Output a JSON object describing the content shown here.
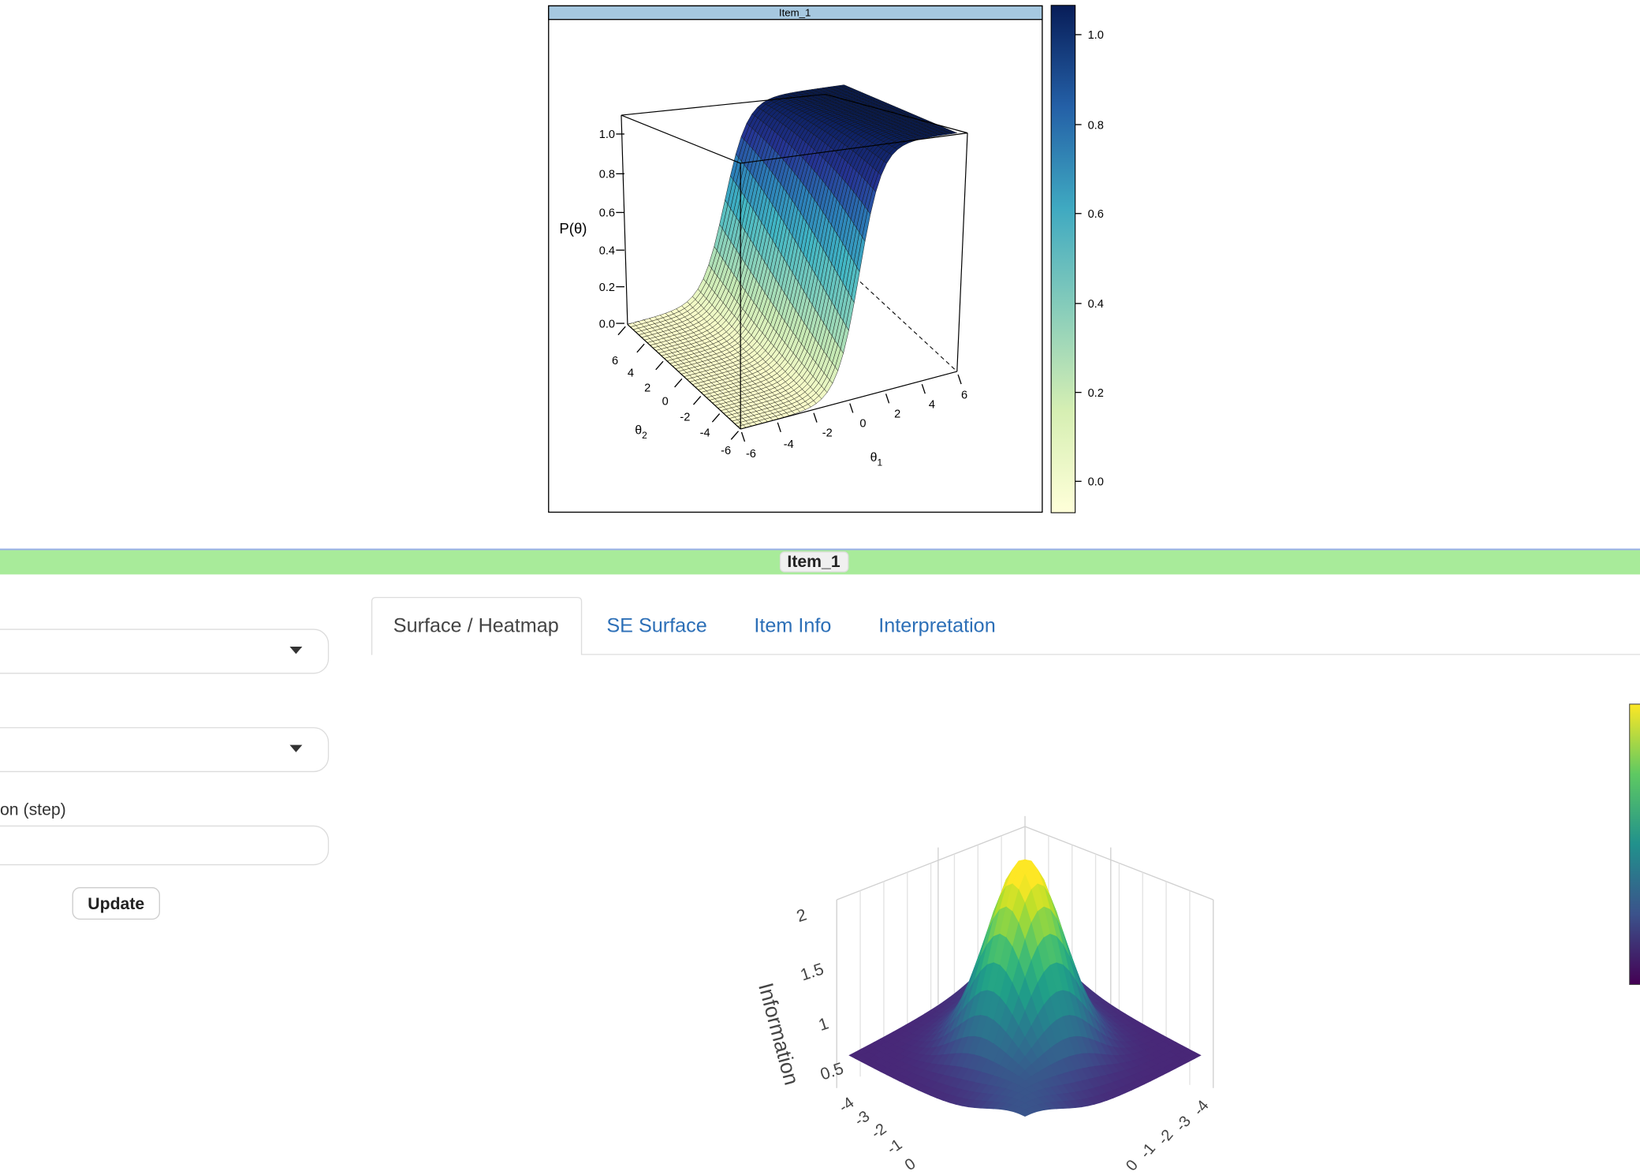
{
  "lattice_plot": {
    "strip": "Item_1",
    "z_label": "P(θ)",
    "z_ticks": [
      "0.0",
      "0.2",
      "0.4",
      "0.6",
      "0.8",
      "1.0"
    ],
    "theta1_label": {
      "symbol": "θ",
      "subscript": "1"
    },
    "theta1_ticks": [
      "-6",
      "-4",
      "-2",
      "0",
      "2",
      "4",
      "6"
    ],
    "theta2_label": {
      "symbol": "θ",
      "subscript": "2"
    },
    "theta2_ticks": [
      "-6",
      "-4",
      "-2",
      "0",
      "2",
      "4",
      "6"
    ],
    "colorkey_ticks": [
      "0.0",
      "0.2",
      "0.4",
      "0.6",
      "0.8",
      "1.0"
    ]
  },
  "banner": {
    "title": "Item_1"
  },
  "sidebar": {
    "step_label": "on (step)",
    "button": "Update"
  },
  "tabs": {
    "items": [
      "Surface / Heatmap",
      "SE Surface",
      "Item Info",
      "Interpretation"
    ],
    "active": 0
  },
  "plotly_plot": {
    "z_title": "Information",
    "z_ticks": [
      "0.5",
      "1",
      "1.5",
      "2"
    ],
    "x_ticks": [
      "-4",
      "-3",
      "-2",
      "-1",
      "0"
    ],
    "y_ticks": [
      "-4",
      "-3",
      "-2",
      "-1",
      "0"
    ]
  }
}
